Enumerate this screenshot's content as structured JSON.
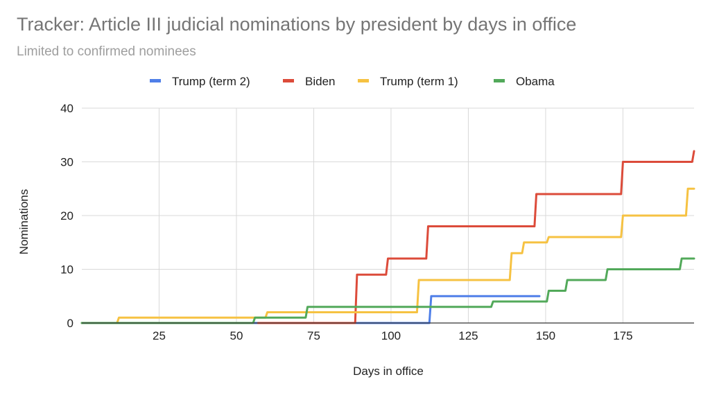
{
  "chart_data": {
    "type": "line",
    "title": "Tracker: Article III judicial nominations by president by days in office",
    "subtitle": "Limited to confirmed nominees",
    "xlabel": "Days in office",
    "ylabel": "Nominations",
    "xlim": [
      0,
      198
    ],
    "ylim": [
      0,
      40
    ],
    "xticks": [
      25,
      50,
      75,
      100,
      125,
      150,
      175
    ],
    "yticks": [
      0,
      10,
      20,
      30,
      40
    ],
    "grid": true,
    "legend_position": "top",
    "step": true,
    "series": [
      {
        "name": "Trump (term 2)",
        "color": "#4f7fe8",
        "x": [
          0,
          90,
          113,
          148
        ],
        "y": [
          0,
          0,
          5,
          5
        ]
      },
      {
        "name": "Biden",
        "color": "#dc4b3a",
        "x": [
          57,
          89,
          99,
          112,
          147,
          175,
          197,
          198
        ],
        "y": [
          0,
          9,
          12,
          18,
          24,
          30,
          30,
          32
        ]
      },
      {
        "name": "Trump (term 1)",
        "color": "#f6c242",
        "x": [
          0,
          12,
          60,
          109,
          139,
          143,
          146,
          151,
          175,
          196,
          198
        ],
        "y": [
          0,
          1,
          2,
          8,
          13,
          15,
          15,
          16,
          20,
          25,
          25
        ]
      },
      {
        "name": "Obama",
        "color": "#52a95a",
        "x": [
          0,
          56,
          73,
          133,
          151,
          157,
          170,
          194,
          198
        ],
        "y": [
          0,
          1,
          3,
          4,
          6,
          8,
          10,
          12,
          12
        ]
      }
    ]
  }
}
